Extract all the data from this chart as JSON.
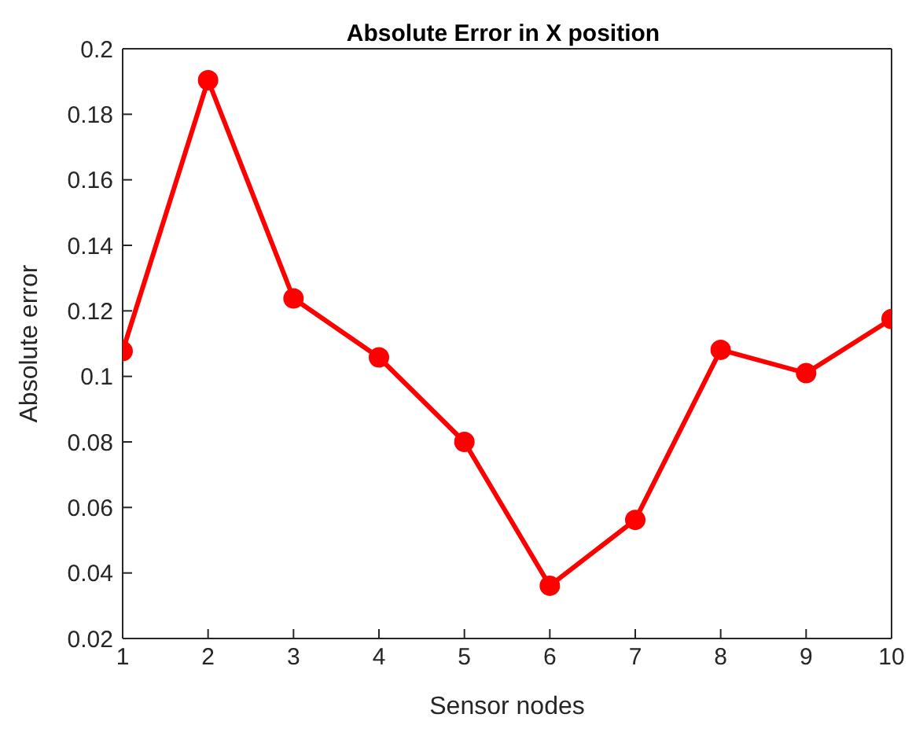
{
  "chart_data": {
    "type": "line",
    "title": "Absolute Error in X position",
    "xlabel": "Sensor nodes",
    "ylabel": "Absolute error",
    "x": [
      1,
      2,
      3,
      4,
      5,
      6,
      7,
      8,
      9,
      10
    ],
    "series": [
      {
        "color": "#ff0000",
        "values": [
          0.1077,
          0.1904,
          0.1238,
          0.1058,
          0.08,
          0.0361,
          0.0562,
          0.1081,
          0.101,
          0.1175
        ]
      }
    ],
    "xlim": [
      1,
      10
    ],
    "xticks": [
      1,
      2,
      3,
      4,
      5,
      6,
      7,
      8,
      9,
      10
    ],
    "ylim": [
      0.02,
      0.2
    ],
    "yticks": [
      0.02,
      0.04,
      0.06,
      0.08,
      0.1,
      0.12,
      0.14,
      0.16,
      0.18,
      0.2
    ],
    "grid": false,
    "legend": false,
    "marker": "circle",
    "line_style": "solid"
  }
}
